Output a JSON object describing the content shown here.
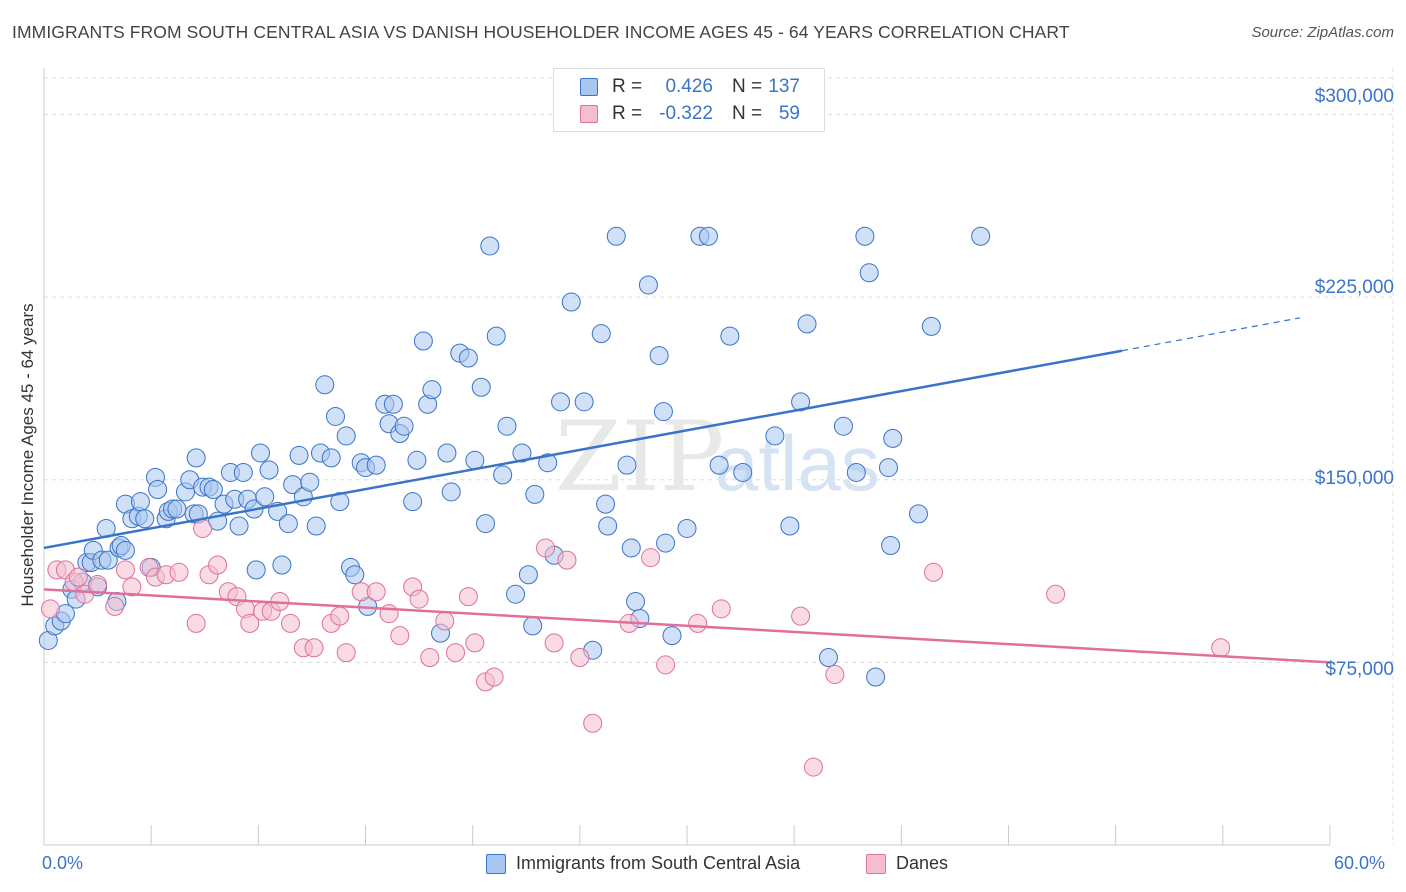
{
  "title": "IMMIGRANTS FROM SOUTH CENTRAL ASIA VS DANISH HOUSEHOLDER INCOME AGES 45 - 64 YEARS CORRELATION CHART",
  "source": "Source: ZipAtlas.com",
  "watermark": {
    "zip": "ZIP",
    "atlas": "atlas"
  },
  "colors": {
    "blue": "#3a74c9",
    "blue_fill": "#a9c7ee",
    "pink": "#e07099",
    "pink_fill": "#f4bed0",
    "grid": "#dddddd"
  },
  "legend": {
    "r_label": "R =",
    "n_label": "N =",
    "rows": [
      {
        "r": "0.426",
        "n": "137"
      },
      {
        "r": "-0.322",
        "n": "59"
      }
    ]
  },
  "chart_data": {
    "type": "scatter",
    "title": "IMMIGRANTS FROM SOUTH CENTRAL ASIA VS DANISH HOUSEHOLDER INCOME AGES 45 - 64 YEARS CORRELATION CHART",
    "xlabel": "",
    "ylabel": "Householder Income Ages 45 - 64 years",
    "xlim": [
      0,
      60
    ],
    "ylim": [
      0,
      315000
    ],
    "x_tick_labels": [
      "0.0%",
      "60.0%"
    ],
    "y_ticks": [
      {
        "value": 75000,
        "label": "$75,000"
      },
      {
        "value": 150000,
        "label": "$150,000"
      },
      {
        "value": 225000,
        "label": "$225,000"
      },
      {
        "value": 300000,
        "label": "$300,000"
      }
    ],
    "series": [
      {
        "name": "Immigrants from South Central Asia",
        "color": "#3a74c9",
        "R": 0.426,
        "N": 137,
        "trend": {
          "x0": 0,
          "y0": 122000,
          "x1": 50.3,
          "y1": 203000,
          "dash_to_x": 58.6,
          "dash_to_y": 216500
        },
        "points": [
          [
            0.2,
            84000
          ],
          [
            0.5,
            90000
          ],
          [
            0.8,
            92000
          ],
          [
            1,
            95000
          ],
          [
            1.3,
            105000
          ],
          [
            1.5,
            101000
          ],
          [
            1.8,
            108000
          ],
          [
            2,
            116000
          ],
          [
            2.2,
            116000
          ],
          [
            2.3,
            121000
          ],
          [
            2.5,
            106000
          ],
          [
            2.7,
            117000
          ],
          [
            2.9,
            130000
          ],
          [
            3,
            117000
          ],
          [
            3.4,
            100000
          ],
          [
            3.5,
            122000
          ],
          [
            3.6,
            123000
          ],
          [
            3.8,
            121000
          ],
          [
            3.8,
            140000
          ],
          [
            4.1,
            134000
          ],
          [
            4.4,
            135000
          ],
          [
            4.5,
            141000
          ],
          [
            4.7,
            134000
          ],
          [
            5,
            114000
          ],
          [
            5.2,
            151000
          ],
          [
            5.3,
            146000
          ],
          [
            5.7,
            134000
          ],
          [
            5.8,
            137000
          ],
          [
            6,
            138000
          ],
          [
            6.2,
            138000
          ],
          [
            6.6,
            145000
          ],
          [
            6.8,
            150000
          ],
          [
            7,
            136000
          ],
          [
            7.1,
            159000
          ],
          [
            7.2,
            136000
          ],
          [
            7.4,
            147000
          ],
          [
            7.7,
            147000
          ],
          [
            7.9,
            146000
          ],
          [
            8.1,
            133000
          ],
          [
            8.4,
            140000
          ],
          [
            8.7,
            153000
          ],
          [
            8.9,
            142000
          ],
          [
            9.1,
            131000
          ],
          [
            9.3,
            153000
          ],
          [
            9.5,
            142000
          ],
          [
            9.8,
            138000
          ],
          [
            9.9,
            113000
          ],
          [
            10.1,
            161000
          ],
          [
            10.3,
            143000
          ],
          [
            10.5,
            154000
          ],
          [
            10.9,
            137000
          ],
          [
            11.1,
            115000
          ],
          [
            11.4,
            132000
          ],
          [
            11.6,
            148000
          ],
          [
            11.9,
            160000
          ],
          [
            12.1,
            143000
          ],
          [
            12.4,
            149000
          ],
          [
            12.7,
            131000
          ],
          [
            12.9,
            161000
          ],
          [
            13.1,
            189000
          ],
          [
            13.4,
            159000
          ],
          [
            13.6,
            176000
          ],
          [
            13.8,
            141000
          ],
          [
            14.1,
            168000
          ],
          [
            14.3,
            114000
          ],
          [
            14.5,
            111000
          ],
          [
            14.8,
            157000
          ],
          [
            15,
            155000
          ],
          [
            15.1,
            98000
          ],
          [
            15.5,
            156000
          ],
          [
            15.9,
            181000
          ],
          [
            16.1,
            173000
          ],
          [
            16.3,
            181000
          ],
          [
            16.6,
            169000
          ],
          [
            16.8,
            172000
          ],
          [
            17.2,
            141000
          ],
          [
            17.4,
            158000
          ],
          [
            17.7,
            207000
          ],
          [
            17.9,
            181000
          ],
          [
            18.1,
            187000
          ],
          [
            18.5,
            87000
          ],
          [
            18.8,
            161000
          ],
          [
            19,
            145000
          ],
          [
            19.4,
            202000
          ],
          [
            19.8,
            200000
          ],
          [
            20.1,
            158000
          ],
          [
            20.4,
            188000
          ],
          [
            20.6,
            132000
          ],
          [
            20.8,
            246000
          ],
          [
            21.1,
            209000
          ],
          [
            21.4,
            152000
          ],
          [
            21.6,
            172000
          ],
          [
            22,
            103000
          ],
          [
            22.3,
            161000
          ],
          [
            22.6,
            111000
          ],
          [
            22.8,
            90000
          ],
          [
            22.9,
            144000
          ],
          [
            23.5,
            157000
          ],
          [
            23.8,
            119000
          ],
          [
            24.1,
            182000
          ],
          [
            24.6,
            223000
          ],
          [
            25.2,
            182000
          ],
          [
            25.6,
            80000
          ],
          [
            26,
            210000
          ],
          [
            26.2,
            140000
          ],
          [
            26.3,
            131000
          ],
          [
            26.7,
            250000
          ],
          [
            27.2,
            156000
          ],
          [
            27.4,
            122000
          ],
          [
            27.6,
            100000
          ],
          [
            27.8,
            93000
          ],
          [
            28.2,
            230000
          ],
          [
            28.7,
            201000
          ],
          [
            28.9,
            178000
          ],
          [
            29,
            124000
          ],
          [
            29.3,
            86000
          ],
          [
            30,
            130000
          ],
          [
            30.6,
            250000
          ],
          [
            31,
            250000
          ],
          [
            31.5,
            156000
          ],
          [
            32,
            209000
          ],
          [
            32.6,
            153000
          ],
          [
            34.1,
            168000
          ],
          [
            34.8,
            131000
          ],
          [
            35.3,
            182000
          ],
          [
            35.6,
            214000
          ],
          [
            36.6,
            77000
          ],
          [
            37.3,
            172000
          ],
          [
            37.9,
            153000
          ],
          [
            38.3,
            250000
          ],
          [
            38.5,
            235000
          ],
          [
            38.8,
            69000
          ],
          [
            39.4,
            155000
          ],
          [
            39.5,
            123000
          ],
          [
            39.6,
            167000
          ],
          [
            40.8,
            136000
          ],
          [
            41.4,
            213000
          ],
          [
            43.7,
            250000
          ]
        ]
      },
      {
        "name": "Danes",
        "color": "#e07099",
        "R": -0.322,
        "N": 59,
        "trend": {
          "x0": 0,
          "y0": 105000,
          "x1": 60,
          "y1": 75000
        },
        "points": [
          [
            0.3,
            97000
          ],
          [
            0.6,
            113000
          ],
          [
            1,
            113000
          ],
          [
            1.4,
            108000
          ],
          [
            1.6,
            110000
          ],
          [
            1.9,
            103000
          ],
          [
            2.5,
            107000
          ],
          [
            3.3,
            98000
          ],
          [
            3.8,
            113000
          ],
          [
            4.1,
            106000
          ],
          [
            4.9,
            114000
          ],
          [
            5.2,
            110000
          ],
          [
            5.7,
            111000
          ],
          [
            6.3,
            112000
          ],
          [
            7.1,
            91000
          ],
          [
            7.4,
            130000
          ],
          [
            7.7,
            111000
          ],
          [
            8.1,
            115000
          ],
          [
            8.6,
            104000
          ],
          [
            9,
            102000
          ],
          [
            9.4,
            97000
          ],
          [
            9.6,
            91000
          ],
          [
            10.2,
            96000
          ],
          [
            10.6,
            96000
          ],
          [
            11,
            100000
          ],
          [
            11.5,
            91000
          ],
          [
            12.1,
            81000
          ],
          [
            12.6,
            81000
          ],
          [
            13.4,
            91000
          ],
          [
            13.8,
            94000
          ],
          [
            14.1,
            79000
          ],
          [
            14.8,
            104000
          ],
          [
            15.5,
            104000
          ],
          [
            16.1,
            95000
          ],
          [
            16.6,
            86000
          ],
          [
            17.2,
            106000
          ],
          [
            17.5,
            101000
          ],
          [
            18,
            77000
          ],
          [
            18.7,
            92000
          ],
          [
            19.2,
            79000
          ],
          [
            19.8,
            102000
          ],
          [
            20.1,
            83000
          ],
          [
            20.6,
            67000
          ],
          [
            21,
            69000
          ],
          [
            23.4,
            122000
          ],
          [
            23.8,
            83000
          ],
          [
            24.4,
            117000
          ],
          [
            25,
            77000
          ],
          [
            25.6,
            50000
          ],
          [
            27.3,
            91000
          ],
          [
            28.3,
            118000
          ],
          [
            29,
            74000
          ],
          [
            30.5,
            91000
          ],
          [
            31.6,
            97000
          ],
          [
            35.3,
            94000
          ],
          [
            35.9,
            32000
          ],
          [
            36.9,
            70000
          ],
          [
            41.5,
            112000
          ],
          [
            47.2,
            103000
          ],
          [
            54.9,
            81000
          ]
        ]
      }
    ]
  }
}
